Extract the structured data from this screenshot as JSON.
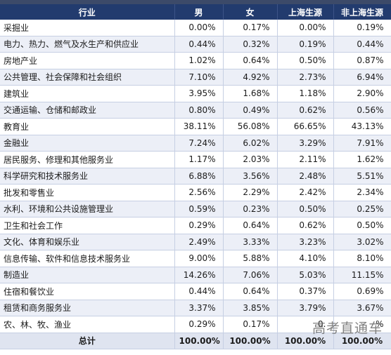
{
  "table": {
    "headers": [
      "行业",
      "男",
      "女",
      "上海生源",
      "非上海生源"
    ],
    "rows": [
      {
        "industry": "采掘业",
        "male": "0.00%",
        "female": "0.17%",
        "shanghai": "0.00%",
        "non_shanghai": "0.19%"
      },
      {
        "industry": "电力、热力、燃气及水生产和供应业",
        "male": "0.44%",
        "female": "0.32%",
        "shanghai": "0.19%",
        "non_shanghai": "0.44%"
      },
      {
        "industry": "房地产业",
        "male": "1.02%",
        "female": "0.64%",
        "shanghai": "0.50%",
        "non_shanghai": "0.87%"
      },
      {
        "industry": "公共管理、社会保障和社会组织",
        "male": "7.10%",
        "female": "4.92%",
        "shanghai": "2.73%",
        "non_shanghai": "6.94%"
      },
      {
        "industry": "建筑业",
        "male": "3.95%",
        "female": "1.68%",
        "shanghai": "1.18%",
        "non_shanghai": "2.90%"
      },
      {
        "industry": "交通运输、仓储和邮政业",
        "male": "0.80%",
        "female": "0.49%",
        "shanghai": "0.62%",
        "non_shanghai": "0.56%"
      },
      {
        "industry": "教育业",
        "male": "38.11%",
        "female": "56.08%",
        "shanghai": "66.65%",
        "non_shanghai": "43.13%"
      },
      {
        "industry": "金融业",
        "male": "7.24%",
        "female": "6.02%",
        "shanghai": "3.29%",
        "non_shanghai": "7.91%"
      },
      {
        "industry": "居民服务、修理和其他服务业",
        "male": "1.17%",
        "female": "2.03%",
        "shanghai": "2.11%",
        "non_shanghai": "1.62%"
      },
      {
        "industry": "科学研究和技术服务业",
        "male": "6.88%",
        "female": "3.56%",
        "shanghai": "2.48%",
        "non_shanghai": "5.51%"
      },
      {
        "industry": "批发和零售业",
        "male": "2.56%",
        "female": "2.29%",
        "shanghai": "2.42%",
        "non_shanghai": "2.34%"
      },
      {
        "industry": "水利、环境和公共设施管理业",
        "male": "0.59%",
        "female": "0.23%",
        "shanghai": "0.50%",
        "non_shanghai": "0.25%"
      },
      {
        "industry": "卫生和社会工作",
        "male": "0.29%",
        "female": "0.64%",
        "shanghai": "0.62%",
        "non_shanghai": "0.50%"
      },
      {
        "industry": "文化、体育和娱乐业",
        "male": "2.49%",
        "female": "3.33%",
        "shanghai": "3.23%",
        "non_shanghai": "3.02%"
      },
      {
        "industry": "信息传输、软件和信息技术服务业",
        "male": "9.00%",
        "female": "5.88%",
        "shanghai": "4.10%",
        "non_shanghai": "8.10%"
      },
      {
        "industry": "制造业",
        "male": "14.26%",
        "female": "7.06%",
        "shanghai": "5.03%",
        "non_shanghai": "11.15%"
      },
      {
        "industry": "住宿和餐饮业",
        "male": "0.44%",
        "female": "0.64%",
        "shanghai": "0.37%",
        "non_shanghai": "0.69%"
      },
      {
        "industry": "租赁和商务服务业",
        "male": "3.37%",
        "female": "3.85%",
        "shanghai": "3.79%",
        "non_shanghai": "3.67%"
      },
      {
        "industry": "农、林、牧、渔业",
        "male": "0.29%",
        "female": "0.17%",
        "shanghai": "0.",
        "non_shanghai": "%"
      }
    ],
    "total": {
      "label": "总计",
      "male": "100.00%",
      "female": "100.00%",
      "shanghai": "100.00%",
      "non_shanghai": "100.00%"
    }
  },
  "watermark": "高考直通车",
  "colors": {
    "header_bg": "#223b6e",
    "header_text": "#ffffff",
    "alt_row": "#eceff7",
    "grid_line": "#c6cfe3"
  }
}
